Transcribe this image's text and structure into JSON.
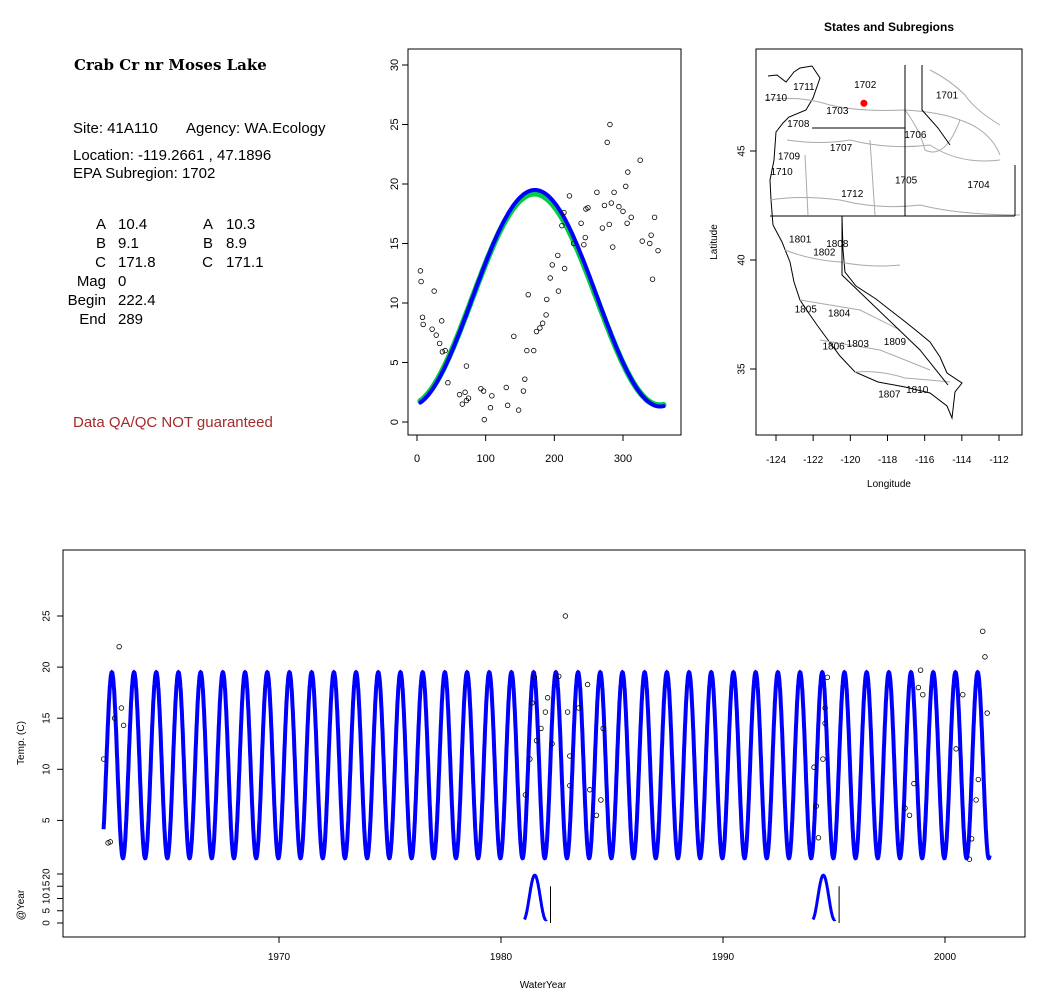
{
  "site_panel": {
    "title": "Crab Cr nr Moses Lake",
    "site": "Site: 41A110",
    "agency": "Agency: WA.Ecology",
    "location": "Location: -119.2661 , 47.1896",
    "subregion": "EPA Subregion: 1702",
    "params_left": [
      {
        "label": "A",
        "value": "10.4"
      },
      {
        "label": "B",
        "value": "9.1"
      },
      {
        "label": "C",
        "value": "171.8"
      },
      {
        "label": "Mag",
        "value": "0"
      },
      {
        "label": "Begin",
        "value": "222.4"
      },
      {
        "label": "End",
        "value": "289"
      }
    ],
    "params_right": [
      {
        "label": "A",
        "value": "10.3"
      },
      {
        "label": "B",
        "value": "8.9"
      },
      {
        "label": "C",
        "value": "171.1"
      }
    ],
    "warning": "Data QA/QC NOT guaranteed",
    "warning_color": "#a52a2a"
  },
  "chart_data": [
    {
      "type": "scatter",
      "title": "",
      "xlabel": "",
      "ylabel": "",
      "xlim": [
        0,
        365
      ],
      "ylim": [
        0,
        30
      ],
      "x_ticks": [
        "0",
        "100",
        "200",
        "300"
      ],
      "y_ticks": [
        "0",
        "5",
        "10",
        "15",
        "20",
        "25",
        "30"
      ],
      "series": [
        {
          "color": "#0000ff",
          "curve": {
            "A": 10.4,
            "B": 9.1,
            "C": 171.8
          }
        },
        {
          "color": "#00cc44",
          "curve": {
            "A": 10.3,
            "B": 8.9,
            "C": 171.1
          }
        }
      ],
      "points": [
        [
          5,
          12.7
        ],
        [
          6,
          11.8
        ],
        [
          8,
          8.8
        ],
        [
          9,
          8.2
        ],
        [
          22,
          7.8
        ],
        [
          25,
          11
        ],
        [
          28,
          7.3
        ],
        [
          33,
          6.6
        ],
        [
          36,
          8.5
        ],
        [
          37,
          5.9
        ],
        [
          41,
          6
        ],
        [
          45,
          3.3
        ],
        [
          62,
          2.3
        ],
        [
          66,
          1.5
        ],
        [
          70,
          2.5
        ],
        [
          72,
          4.7
        ],
        [
          72,
          1.8
        ],
        [
          75,
          2
        ],
        [
          93,
          2.8
        ],
        [
          97,
          2.6
        ],
        [
          98,
          0.2
        ],
        [
          107,
          1.2
        ],
        [
          109,
          2.2
        ],
        [
          130,
          2.9
        ],
        [
          132,
          1.4
        ],
        [
          141,
          7.2
        ],
        [
          148,
          1
        ],
        [
          155,
          2.6
        ],
        [
          157,
          3.6
        ],
        [
          160,
          6
        ],
        [
          162,
          10.7
        ],
        [
          170,
          6
        ],
        [
          174,
          7.6
        ],
        [
          179,
          7.9
        ],
        [
          183,
          8.3
        ],
        [
          188,
          9
        ],
        [
          189,
          10.3
        ],
        [
          194,
          12.1
        ],
        [
          197,
          13.2
        ],
        [
          205,
          14
        ],
        [
          206,
          11
        ],
        [
          211,
          16.5
        ],
        [
          214,
          17.6
        ],
        [
          215,
          12.9
        ],
        [
          222,
          19
        ],
        [
          228,
          15
        ],
        [
          239,
          16.7
        ],
        [
          243,
          14.9
        ],
        [
          245,
          15.5
        ],
        [
          246,
          17.9
        ],
        [
          249,
          18
        ],
        [
          262,
          19.3
        ],
        [
          270,
          16.3
        ],
        [
          273,
          18.2
        ],
        [
          277,
          23.5
        ],
        [
          280,
          16.6
        ],
        [
          281,
          25
        ],
        [
          283,
          18.4
        ],
        [
          285,
          14.7
        ],
        [
          287,
          19.3
        ],
        [
          294,
          18.1
        ],
        [
          300,
          17.7
        ],
        [
          304,
          19.8
        ],
        [
          306,
          16.7
        ],
        [
          307,
          21
        ],
        [
          312,
          17.2
        ],
        [
          325,
          22
        ],
        [
          328,
          15.2
        ],
        [
          339,
          15
        ],
        [
          341,
          15.7
        ],
        [
          343,
          12
        ],
        [
          346,
          17.2
        ],
        [
          351,
          14.4
        ]
      ]
    },
    {
      "type": "line",
      "title": "",
      "xlabel": "WaterYear",
      "ylabel": "Temp. (C)",
      "sub_ylabel": "@Year",
      "xlim": [
        1960.9,
        2003.5
      ],
      "ylim": [
        0,
        30
      ],
      "x_ticks": [
        "1970",
        "1980",
        "1990",
        "2000"
      ],
      "y_ticks": [
        "5",
        "10",
        "15",
        "20",
        "25"
      ],
      "sub_y_ticks": [
        "0",
        "5",
        "10",
        "15",
        "20"
      ],
      "series": [
        {
          "color": "#0000ff",
          "curve": {
            "A": 10.4,
            "B": 9.1,
            "C": 171.8
          },
          "x_range": [
            1962,
            2002
          ]
        }
      ],
      "points": [
        [
          1962.1,
          11
        ],
        [
          1962.3,
          2.8
        ],
        [
          1962.4,
          2.9
        ],
        [
          1962.8,
          22
        ],
        [
          1962.9,
          16
        ],
        [
          1963.0,
          14.3
        ],
        [
          1962.6,
          15
        ],
        [
          1981.1,
          7.5
        ],
        [
          1981.3,
          11
        ],
        [
          1981.4,
          16.5
        ],
        [
          1981.5,
          19
        ],
        [
          1981.6,
          12.8
        ],
        [
          1981.8,
          14
        ],
        [
          1982.0,
          15.6
        ],
        [
          1982.1,
          17
        ],
        [
          1982.3,
          12.5
        ],
        [
          1982.6,
          19.1
        ],
        [
          1982.9,
          25
        ],
        [
          1983.0,
          15.6
        ],
        [
          1983.1,
          11.3
        ],
        [
          1983.1,
          8.4
        ],
        [
          1983.5,
          16
        ],
        [
          1983.9,
          18.3
        ],
        [
          1984.0,
          8
        ],
        [
          1984.3,
          5.5
        ],
        [
          1984.5,
          7
        ],
        [
          1984.6,
          14
        ],
        [
          1994.1,
          10.2
        ],
        [
          1994.2,
          6.4
        ],
        [
          1994.3,
          3.3
        ],
        [
          1994.5,
          11
        ],
        [
          1994.6,
          14.5
        ],
        [
          1994.7,
          19
        ],
        [
          1994.6,
          16
        ],
        [
          1998.2,
          6.2
        ],
        [
          1998.4,
          5.5
        ],
        [
          1998.6,
          8.6
        ],
        [
          1998.8,
          18
        ],
        [
          1998.9,
          19.7
        ],
        [
          1999.0,
          17.3
        ],
        [
          2001.1,
          1.2
        ],
        [
          2001.2,
          3.2
        ],
        [
          2001.4,
          7
        ],
        [
          2001.5,
          9
        ],
        [
          2001.7,
          23.5
        ],
        [
          2001.8,
          21
        ],
        [
          2001.9,
          15.5
        ],
        [
          2000.5,
          12
        ],
        [
          2000.8,
          17.3
        ]
      ],
      "sub_series": [
        {
          "color": "#0000ff",
          "x_range": [
            1981.05,
            1982.05
          ]
        },
        {
          "color": "#0000ff",
          "x_range": [
            1994.05,
            1995.05
          ]
        }
      ]
    },
    {
      "type": "map",
      "title": "States and Subregions",
      "xlabel": "Longitude",
      "ylabel": "Latitude",
      "xlim": [
        -125.5,
        -110.5
      ],
      "ylim": [
        32,
        49.5
      ],
      "x_ticks": [
        "-124",
        "-122",
        "-120",
        "-118",
        "-116",
        "-114",
        "-112"
      ],
      "y_ticks": [
        "35",
        "40",
        "45"
      ],
      "site_point": {
        "lon": -119.27,
        "lat": 47.19,
        "color": "#ff0000"
      },
      "regions": [
        {
          "label": "1702",
          "lon": -119.2,
          "lat": 47.9
        },
        {
          "label": "1711",
          "lon": -122.5,
          "lat": 47.8
        },
        {
          "label": "1701",
          "lon": -114.8,
          "lat": 47.4
        },
        {
          "label": "1710",
          "lon": -124.0,
          "lat": 47.3
        },
        {
          "label": "1703",
          "lon": -120.7,
          "lat": 46.7
        },
        {
          "label": "1708",
          "lon": -122.8,
          "lat": 46.1
        },
        {
          "label": "1706",
          "lon": -116.5,
          "lat": 45.6
        },
        {
          "label": "1707",
          "lon": -120.5,
          "lat": 45.0
        },
        {
          "label": "1709",
          "lon": -123.3,
          "lat": 44.6
        },
        {
          "label": "1710",
          "lon": -123.7,
          "lat": 43.9
        },
        {
          "label": "1705",
          "lon": -117.0,
          "lat": 43.5
        },
        {
          "label": "1704",
          "lon": -113.1,
          "lat": 43.3
        },
        {
          "label": "1712",
          "lon": -119.9,
          "lat": 42.9
        },
        {
          "label": "1801",
          "lon": -122.7,
          "lat": 40.8
        },
        {
          "label": "1808",
          "lon": -120.7,
          "lat": 40.6
        },
        {
          "label": "1802",
          "lon": -121.4,
          "lat": 40.2
        },
        {
          "label": "1805",
          "lon": -122.4,
          "lat": 37.6
        },
        {
          "label": "1804",
          "lon": -120.6,
          "lat": 37.4
        },
        {
          "label": "1809",
          "lon": -117.6,
          "lat": 36.1
        },
        {
          "label": "1806",
          "lon": -120.9,
          "lat": 35.9
        },
        {
          "label": "1803",
          "lon": -119.6,
          "lat": 36.0
        },
        {
          "label": "1807",
          "lon": -117.9,
          "lat": 33.7
        },
        {
          "label": "1810",
          "lon": -116.4,
          "lat": 33.9
        }
      ]
    }
  ]
}
